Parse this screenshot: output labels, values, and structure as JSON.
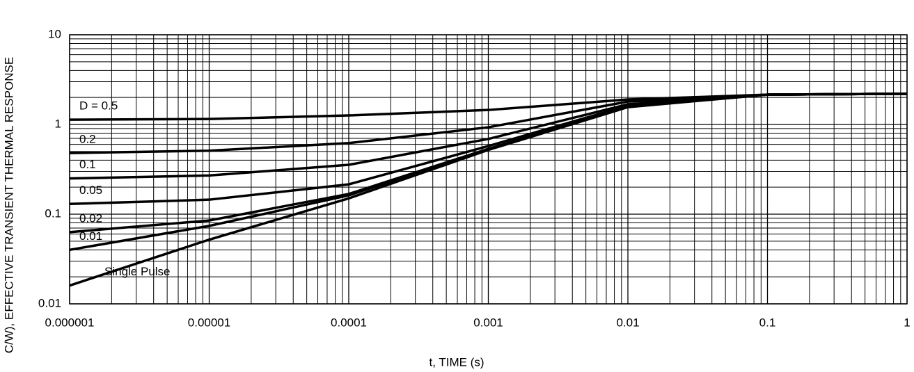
{
  "chart_data": {
    "type": "line",
    "y_label": "C/W), EFFECTIVE TRANSIENT THERMAL RESPONSE",
    "x_label": "t, TIME (s)",
    "log_x": true,
    "log_y": true,
    "grid": true,
    "minor_grid": true,
    "xlim": [
      1e-06,
      1
    ],
    "ylim": [
      0.01,
      10
    ],
    "xticks": [
      1e-06,
      1e-05,
      0.0001,
      0.001,
      0.01,
      0.1,
      1
    ],
    "yticks": [
      0.01,
      0.1,
      1,
      10
    ],
    "x": [
      1e-06,
      1e-05,
      0.0001,
      0.001,
      0.01,
      0.1,
      1
    ],
    "series": [
      {
        "name": "D = 0.5",
        "color": "#000000",
        "values": [
          1.13,
          1.15,
          1.26,
          1.45,
          1.9,
          2.15,
          2.2
        ]
      },
      {
        "name": "0.2",
        "color": "#000000",
        "values": [
          0.48,
          0.51,
          0.62,
          0.93,
          1.8,
          2.15,
          2.2
        ]
      },
      {
        "name": "0.1",
        "color": "#000000",
        "values": [
          0.25,
          0.27,
          0.355,
          0.69,
          1.68,
          2.15,
          2.2
        ]
      },
      {
        "name": "0.05",
        "color": "#000000",
        "values": [
          0.13,
          0.145,
          0.215,
          0.575,
          1.62,
          2.15,
          2.2
        ]
      },
      {
        "name": "0.02",
        "color": "#000000",
        "values": [
          0.063,
          0.085,
          0.168,
          0.535,
          1.59,
          2.15,
          2.2
        ]
      },
      {
        "name": "0.01",
        "color": "#000000",
        "values": [
          0.04,
          0.074,
          0.162,
          0.53,
          1.58,
          2.15,
          2.2
        ]
      },
      {
        "name": "Single Pulse",
        "color": "#000000",
        "values": [
          0.016,
          0.052,
          0.15,
          0.52,
          1.56,
          2.15,
          2.2
        ]
      }
    ]
  }
}
